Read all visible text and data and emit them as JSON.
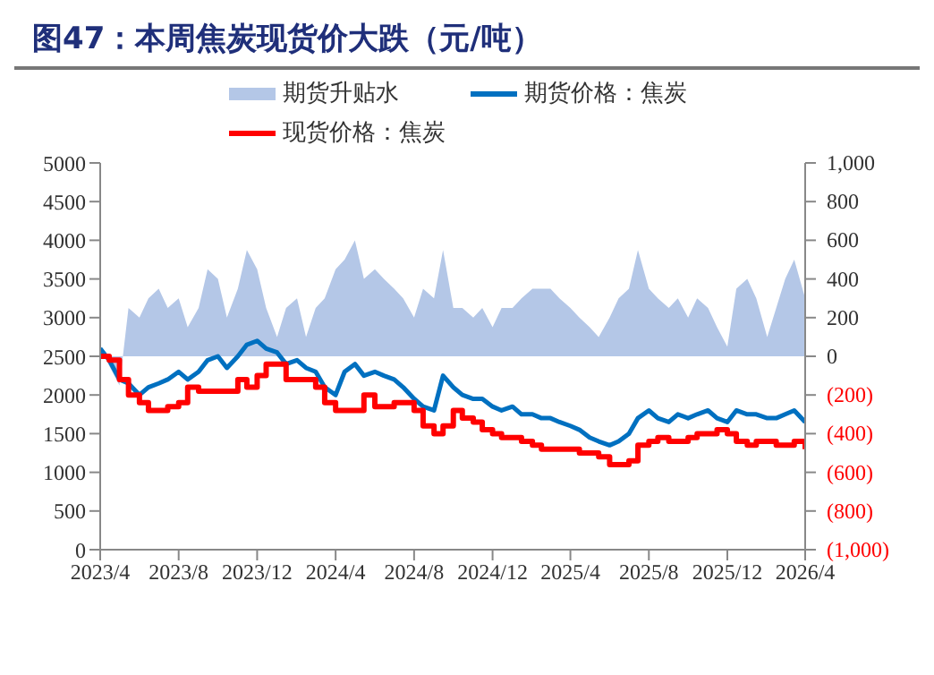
{
  "chart_data": {
    "type": "line",
    "title": "图47：本周焦炭现货价大跌（元/吨）",
    "x": [
      "2023-04-01",
      "2023-04-15",
      "2023-05-01",
      "2023-05-15",
      "2023-06-01",
      "2023-06-15",
      "2023-07-01",
      "2023-07-15",
      "2023-08-01",
      "2023-08-15",
      "2023-09-01",
      "2023-09-15",
      "2023-10-01",
      "2023-10-15",
      "2023-11-01",
      "2023-11-15",
      "2023-12-01",
      "2023-12-15",
      "2024-01-01",
      "2024-01-15",
      "2024-02-01",
      "2024-02-15",
      "2024-03-01",
      "2024-03-15",
      "2024-04-01",
      "2024-04-15",
      "2024-05-01",
      "2024-05-15",
      "2024-06-01",
      "2024-06-15",
      "2024-07-01",
      "2024-07-15",
      "2024-08-01",
      "2024-08-15",
      "2024-09-01",
      "2024-09-15",
      "2024-10-01",
      "2024-10-15",
      "2024-11-01",
      "2024-11-15",
      "2024-12-01",
      "2024-12-15",
      "2025-01-01",
      "2025-01-15",
      "2025-02-01",
      "2025-02-15",
      "2025-03-01",
      "2025-03-15",
      "2025-04-01",
      "2025-04-15",
      "2025-05-01",
      "2025-05-15",
      "2025-06-01",
      "2025-06-15",
      "2025-07-01",
      "2025-07-15",
      "2025-08-01",
      "2025-08-15",
      "2025-09-01",
      "2025-09-15",
      "2025-10-01",
      "2025-10-15",
      "2025-11-01",
      "2025-11-15",
      "2025-12-01",
      "2025-12-15",
      "2026-01-01",
      "2026-01-15",
      "2026-02-01",
      "2026-02-15",
      "2026-03-01",
      "2026-03-15",
      "2026-04-01"
    ],
    "series": [
      {
        "name": "期货升贴水",
        "type": "area",
        "axis": "y2",
        "color": "#b4c7e7",
        "values": [
          50,
          -50,
          -150,
          250,
          200,
          300,
          350,
          250,
          300,
          150,
          250,
          450,
          400,
          200,
          350,
          550,
          450,
          250,
          100,
          250,
          300,
          100,
          250,
          300,
          450,
          500,
          600,
          400,
          450,
          400,
          350,
          300,
          200,
          350,
          300,
          550,
          250,
          250,
          200,
          250,
          150,
          250,
          250,
          300,
          350,
          350,
          350,
          300,
          250,
          200,
          150,
          100,
          200,
          300,
          350,
          550,
          350,
          300,
          250,
          300,
          200,
          300,
          250,
          150,
          50,
          350,
          400,
          300,
          100,
          250,
          400,
          500,
          300
        ]
      },
      {
        "name": "期货价格：焦炭",
        "color": "#0070c0",
        "values": [
          2600,
          2450,
          2200,
          2150,
          2000,
          2100,
          2150,
          2200,
          2300,
          2200,
          2300,
          2450,
          2500,
          2350,
          2500,
          2650,
          2700,
          2600,
          2550,
          2400,
          2450,
          2350,
          2300,
          2100,
          2000,
          2300,
          2400,
          2250,
          2300,
          2250,
          2200,
          2100,
          1950,
          1850,
          1800,
          2250,
          2100,
          2000,
          1950,
          1950,
          1850,
          1800,
          1850,
          1750,
          1750,
          1700,
          1700,
          1650,
          1600,
          1550,
          1450,
          1400,
          1350,
          1400,
          1500,
          1700,
          1800,
          1700,
          1650,
          1750,
          1700,
          1750,
          1800,
          1700,
          1650,
          1800,
          1750,
          1750,
          1700,
          1700,
          1750,
          1800,
          1650
        ]
      },
      {
        "name": "现货价格：焦炭",
        "type": "step",
        "color": "#ff0000",
        "values": [
          2500,
          2450,
          2200,
          2000,
          1900,
          1800,
          1800,
          1850,
          1900,
          2100,
          2050,
          2050,
          2050,
          2050,
          2200,
          2100,
          2250,
          2400,
          2400,
          2200,
          2200,
          2200,
          2100,
          1900,
          1800,
          1800,
          1800,
          2000,
          1850,
          1850,
          1900,
          1900,
          1800,
          1600,
          1500,
          1600,
          1800,
          1700,
          1650,
          1550,
          1500,
          1450,
          1450,
          1400,
          1350,
          1300,
          1300,
          1300,
          1300,
          1250,
          1250,
          1200,
          1100,
          1100,
          1150,
          1350,
          1400,
          1450,
          1400,
          1400,
          1450,
          1500,
          1500,
          1550,
          1500,
          1400,
          1350,
          1400,
          1400,
          1350,
          1350,
          1400,
          1300
        ]
      }
    ],
    "xlim": [
      "2023-04",
      "2026-04"
    ],
    "xticks": [
      {
        "value": "2023-04",
        "label": "2023/4"
      },
      {
        "value": "2023-08",
        "label": "2023/8"
      },
      {
        "value": "2023-12",
        "label": "2023/12"
      },
      {
        "value": "2024-04",
        "label": "2024/4"
      },
      {
        "value": "2024-08",
        "label": "2024/8"
      },
      {
        "value": "2024-12",
        "label": "2024/12"
      },
      {
        "value": "2025-04",
        "label": "2025/4"
      },
      {
        "value": "2025-08",
        "label": "2025/8"
      },
      {
        "value": "2025-12",
        "label": "2025/12"
      },
      {
        "value": "2026-04",
        "label": "2026/4"
      }
    ],
    "ylim": [
      0,
      5000
    ],
    "yticks": [
      0,
      500,
      1000,
      1500,
      2000,
      2500,
      3000,
      3500,
      4000,
      4500,
      5000
    ],
    "y2lim": [
      -1000,
      1000
    ],
    "y2ticks": [
      {
        "value": -1000,
        "label": "(1,000)"
      },
      {
        "value": -800,
        "label": "(800)"
      },
      {
        "value": -600,
        "label": "(600)"
      },
      {
        "value": -400,
        "label": "(400)"
      },
      {
        "value": -200,
        "label": "(200)"
      },
      0,
      200,
      400,
      600,
      800,
      {
        "value": 1000,
        "label": "1,000"
      }
    ],
    "legend": "top",
    "grid": false,
    "line_style": "solid",
    "marker": "none"
  }
}
